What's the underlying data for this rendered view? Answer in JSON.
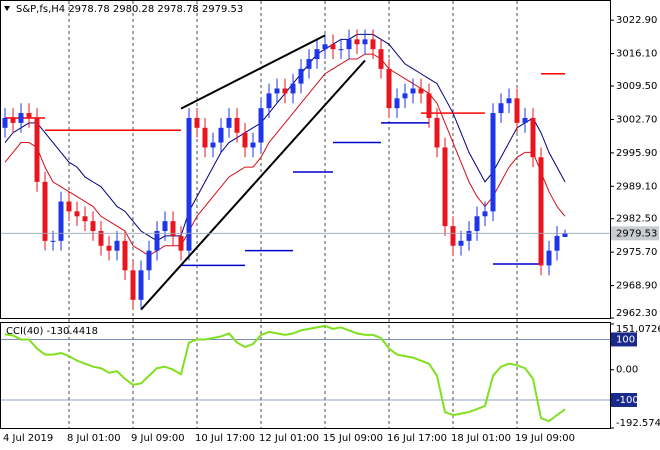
{
  "chart_data": [
    {
      "type": "candlestick",
      "title": "S&P,fs,H4  2978.78 2980.28 2978.78 2979.53",
      "categories": [
        "4 Jul 2019",
        null,
        null,
        null,
        null,
        null,
        null,
        null,
        "8 Jul 01:00",
        null,
        null,
        null,
        null,
        null,
        null,
        null,
        "9 Jul 09:00",
        null,
        null,
        null,
        null,
        null,
        null,
        null,
        "10 Jul 17:00",
        null,
        null,
        null,
        null,
        null,
        null,
        null,
        "12 Jul 01:00",
        null,
        null,
        null,
        null,
        null,
        null,
        null,
        "15 Jul 09:00",
        null,
        null,
        null,
        null,
        null,
        null,
        null,
        "16 Jul 17:00",
        null,
        null,
        null,
        null,
        null,
        null,
        null,
        "18 Jul 01:00",
        null,
        null,
        null,
        null,
        null,
        null,
        null,
        "19 Jul 09:00",
        null,
        null,
        null,
        null,
        null,
        null
      ],
      "open": [
        3001,
        3003,
        3002,
        3004,
        3003,
        2990,
        2978,
        2978,
        2986,
        2984,
        2983,
        2982,
        2980,
        2977,
        2976,
        2978,
        2972,
        2966,
        2972,
        2976,
        2980,
        2982,
        2979,
        2976,
        3003,
        3001,
        2997,
        2998,
        3001,
        3003,
        3000,
        2997,
        2998,
        3005,
        3008,
        3009,
        3008,
        3010,
        3013,
        3015,
        3017,
        3018,
        3017,
        3017,
        3019,
        3018,
        3019,
        3017,
        3013,
        3005,
        3007,
        3008,
        3009,
        3008,
        3003,
        2997,
        2981,
        2977,
        2978,
        2980,
        2983,
        2984,
        3004,
        3006,
        3007,
        3002,
        3003,
        2995,
        2973,
        2976,
        2978.78
      ],
      "high": [
        3005,
        3005,
        3006,
        3006,
        3005,
        2992,
        2980,
        2988,
        2988,
        2986,
        2985,
        2984,
        2982,
        2979,
        2980,
        2980,
        2974,
        2974,
        2978,
        2982,
        2984,
        2984,
        2981,
        3005,
        3005,
        3003,
        3000,
        3003,
        3005,
        3005,
        3002,
        3000,
        3007,
        3010,
        3011,
        3011,
        3012,
        3015,
        3017,
        3019,
        3020,
        3020,
        3019,
        3021,
        3021,
        3021,
        3021,
        3019,
        3015,
        3009,
        3010,
        3011,
        3011,
        3010,
        3005,
        2999,
        2983,
        2980,
        2982,
        2985,
        2986,
        3006,
        3008,
        3009,
        3009,
        3005,
        3005,
        2997,
        2978,
        2981,
        2980.28
      ],
      "low": [
        2999,
        3000,
        3000,
        3001,
        2988,
        2976,
        2976,
        2976,
        2982,
        2981,
        2980,
        2978,
        2975,
        2974,
        2974,
        2970,
        2964,
        2964,
        2970,
        2974,
        2978,
        2977,
        2974,
        2974,
        2999,
        2995,
        2995,
        2996,
        2999,
        2998,
        2995,
        2995,
        2996,
        3003,
        3006,
        3006,
        3006,
        3008,
        3011,
        3013,
        3015,
        3015,
        3015,
        3015,
        3016,
        3016,
        3015,
        3011,
        3003,
        3003,
        3005,
        3006,
        3006,
        3001,
        2995,
        2979,
        2975,
        2975,
        2976,
        2978,
        2981,
        2982,
        3002,
        3004,
        3000,
        3000,
        2993,
        2971,
        2971,
        2974,
        2978.78
      ],
      "close": [
        3003,
        3002,
        3004,
        3003,
        2990,
        2978,
        2978,
        2986,
        2984,
        2983,
        2982,
        2980,
        2977,
        2976,
        2978,
        2972,
        2966,
        2972,
        2976,
        2980,
        2982,
        2979,
        2976,
        3003,
        3001,
        2997,
        2998,
        3001,
        3003,
        3000,
        2997,
        2998,
        3005,
        3008,
        3009,
        3008,
        3010,
        3013,
        3015,
        3017,
        3018,
        3017,
        3017,
        3019,
        3018,
        3019,
        3017,
        3013,
        3005,
        3007,
        3008,
        3009,
        3008,
        3003,
        2997,
        2981,
        2977,
        2978,
        2980,
        2983,
        2984,
        3004,
        3006,
        3007,
        3002,
        3003,
        2995,
        2973,
        2976,
        2979,
        2979.53
      ],
      "up_color": "#1f35e8",
      "down_color": "#e8141e",
      "overlays": [
        {
          "color": "#d0101a",
          "values": [
            2994,
            2996,
            2998,
            2998,
            2997,
            2993,
            2990,
            2989,
            2988,
            2987,
            2986,
            2985,
            2983,
            2982,
            2981,
            2980,
            2977,
            2976,
            2975,
            2976,
            2977,
            2977,
            2977,
            2980,
            2983,
            2985,
            2987,
            2989,
            2991,
            2992,
            2993,
            2993,
            2995,
            2998,
            3000,
            3002,
            3004,
            3006,
            3008,
            3010,
            3012,
            3013,
            3014,
            3015,
            3015,
            3016,
            3016,
            3015,
            3013,
            3012,
            3011,
            3010,
            3009,
            3008,
            3006,
            3002,
            2998,
            2994,
            2990,
            2987,
            2985,
            2987,
            2990,
            2993,
            2995,
            2996,
            2996,
            2992,
            2988,
            2985,
            2983
          ]
        },
        {
          "color": "#000080",
          "values": [
            2998,
            3000,
            3001,
            3002,
            3002,
            3000,
            2998,
            2996,
            2994,
            2993,
            2991,
            2990,
            2989,
            2987,
            2985,
            2984,
            2982,
            2980,
            2979,
            2978,
            2979,
            2979,
            2979,
            2984,
            2987,
            2990,
            2993,
            2996,
            2998,
            2999,
            3000,
            3001,
            3002,
            3004,
            3006,
            3008,
            3010,
            3012,
            3014,
            3016,
            3017,
            3018,
            3019,
            3019,
            3020,
            3020,
            3020,
            3019,
            3018,
            3016,
            3014,
            3013,
            3012,
            3011,
            3010,
            3007,
            3004,
            3000,
            2996,
            2993,
            2990,
            2992,
            2995,
            2998,
            3001,
            3002,
            3003,
            3000,
            2996,
            2993,
            2990
          ]
        }
      ],
      "levels": [
        {
          "from": 0,
          "to": 5,
          "value": 3003,
          "color": "#ff0000"
        },
        {
          "from": 5,
          "to": 22,
          "value": 3000.5,
          "color": "#ff0000"
        },
        {
          "from": 52,
          "to": 60,
          "value": 3004,
          "color": "#ff0000"
        },
        {
          "from": 67,
          "to": 70,
          "value": 3012,
          "color": "#ff0000"
        },
        {
          "from": 22,
          "to": 30,
          "value": 2973,
          "color": "#0000cc"
        },
        {
          "from": 30,
          "to": 36,
          "value": 2976,
          "color": "#0000cc"
        },
        {
          "from": 36,
          "to": 41,
          "value": 2992,
          "color": "#0000cc"
        },
        {
          "from": 41,
          "to": 47,
          "value": 2998,
          "color": "#0000cc"
        },
        {
          "from": 47,
          "to": 53,
          "value": 3002,
          "color": "#0000cc"
        },
        {
          "from": 61,
          "to": 67,
          "value": 2973.3,
          "color": "#0000cc"
        }
      ],
      "trendlines": [
        {
          "x": [
            22,
            40
          ],
          "y": [
            3004.9,
            3019.8
          ],
          "color": "#000000"
        },
        {
          "x": [
            17,
            45
          ],
          "y": [
            2964,
            3014.7
          ],
          "color": "#000000"
        }
      ],
      "ylim": [
        2962.3,
        3026.6
      ],
      "yticks": [
        {
          "value": 3022.9,
          "label": "3022.90"
        },
        {
          "value": 3016.1,
          "label": "3016.10"
        },
        {
          "value": 3009.5,
          "label": "3009.50"
        },
        {
          "value": 3002.7,
          "label": "3002.70"
        },
        {
          "value": 2995.9,
          "label": "2995.90"
        },
        {
          "value": 2989.1,
          "label": "2989.10"
        },
        {
          "value": 2982.5,
          "label": "2982.50"
        },
        {
          "value": 2975.7,
          "label": "2975.70"
        },
        {
          "value": 2968.9,
          "label": "2968.90"
        },
        {
          "value": 2962.3,
          "label": "2962.30"
        }
      ]
    },
    {
      "type": "line",
      "title": "CCI(40) -130.4418",
      "color": "#7fe020",
      "values": [
        117,
        113,
        100,
        100,
        70,
        50,
        50,
        55,
        45,
        30,
        20,
        10,
        5,
        -10,
        -5,
        -30,
        -50,
        -45,
        -20,
        5,
        10,
        0,
        -15,
        90,
        100,
        100,
        105,
        110,
        120,
        90,
        75,
        85,
        115,
        125,
        120,
        115,
        120,
        130,
        135,
        140,
        145,
        135,
        140,
        130,
        120,
        115,
        115,
        105,
        70,
        50,
        45,
        40,
        30,
        20,
        -20,
        -140,
        -150,
        -145,
        -140,
        -130,
        -120,
        -20,
        10,
        20,
        15,
        5,
        -30,
        -160,
        -170,
        -150,
        -130.4418
      ],
      "levels": [
        100,
        -100
      ],
      "level_color": "#6a7fb0",
      "ylim": [
        -192.5741,
        151.0726
      ],
      "yticks": [
        151.0726,
        100,
        {
          "value": 0,
          "label": "0.00"
        },
        -100,
        -192.5741
      ]
    }
  ]
}
